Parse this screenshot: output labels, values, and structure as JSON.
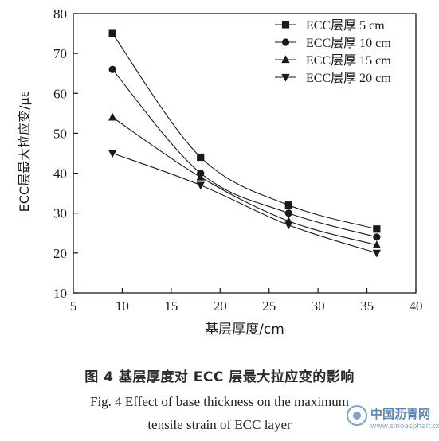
{
  "chart_data": {
    "type": "line",
    "title": "",
    "xlabel": "基层厚度/cm",
    "ylabel": "ECC层最大拉应变/με",
    "xlim": [
      5,
      40
    ],
    "ylim": [
      10,
      80
    ],
    "xticks": [
      5,
      10,
      15,
      20,
      25,
      30,
      35,
      40
    ],
    "yticks": [
      10,
      20,
      30,
      40,
      50,
      60,
      70,
      80
    ],
    "x": [
      9,
      18,
      27,
      36
    ],
    "series": [
      {
        "name": "ECC层厚   5 cm",
        "marker": "square",
        "values": [
          75,
          44,
          32,
          26
        ]
      },
      {
        "name": "ECC层厚 10 cm",
        "marker": "circle",
        "values": [
          66,
          40,
          30,
          24
        ]
      },
      {
        "name": "ECC层厚 15 cm",
        "marker": "triangle-up",
        "values": [
          54,
          39,
          28,
          22
        ]
      },
      {
        "name": "ECC层厚 20 cm",
        "marker": "triangle-down",
        "values": [
          45,
          37,
          27,
          20
        ]
      }
    ],
    "legend_position": "top-right",
    "grid": false,
    "line_color": "#1a1a1a"
  },
  "caption": {
    "cn": "图 4    基层厚度对 ECC 层最大拉应变的影响",
    "en_line1": "Fig. 4    Effect of base thickness on the maximum",
    "en_line2": "tensile strain of ECC layer"
  },
  "watermark": {
    "text": "中国沥青网",
    "url": "www.sinoasphalt.com"
  }
}
